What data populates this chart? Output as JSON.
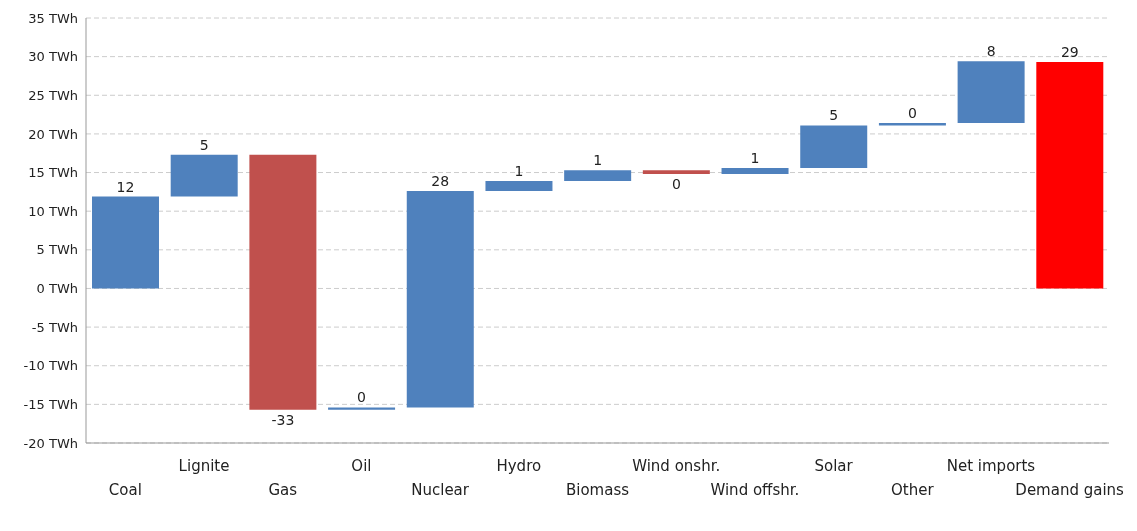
{
  "chart_data": {
    "type": "bar",
    "categories": [
      "Coal",
      "Lignite",
      "Gas",
      "Oil",
      "Nuclear",
      "Hydro",
      "Biomass",
      "Wind onshr.",
      "Wind offshr.",
      "Solar",
      "Other",
      "Net imports",
      "Demand gains"
    ],
    "base": [
      0,
      11.9,
      17.3,
      -15.7,
      -15.4,
      12.6,
      13.9,
      15.3,
      14.8,
      15.6,
      21.1,
      21.4,
      0
    ],
    "values": [
      11.9,
      5.4,
      -33,
      0.3,
      28,
      1.3,
      1.4,
      -0.5,
      0.8,
      5.5,
      0.3,
      8,
      29.3
    ],
    "value_labels": [
      "12",
      "5",
      "-33",
      "0",
      "28",
      "1",
      "1",
      "0",
      "1",
      "5",
      "0",
      "8",
      "29"
    ],
    "colors": [
      "#4f81bd",
      "#4f81bd",
      "#c0504d",
      "#4f81bd",
      "#4f81bd",
      "#4f81bd",
      "#4f81bd",
      "#c0504d",
      "#4f81bd",
      "#4f81bd",
      "#4f81bd",
      "#4f81bd",
      "#ff0000"
    ],
    "ylim": [
      -20,
      35
    ],
    "yticks": [
      {
        "value": -20,
        "label": "-20 TWh"
      },
      {
        "value": -15,
        "label": "-15 TWh"
      },
      {
        "value": -10,
        "label": "-10 TWh"
      },
      {
        "value": -5,
        "label": "-5 TWh"
      },
      {
        "value": 0,
        "label": "0 TWh"
      },
      {
        "value": 5,
        "label": "5 TWh"
      },
      {
        "value": 10,
        "label": "10 TWh"
      },
      {
        "value": 15,
        "label": "15 TWh"
      },
      {
        "value": 20,
        "label": "20 TWh"
      },
      {
        "value": 25,
        "label": "25 TWh"
      },
      {
        "value": 30,
        "label": "30 TWh"
      },
      {
        "value": 35,
        "label": "35 TWh"
      }
    ],
    "grid": "y",
    "legend": false
  }
}
